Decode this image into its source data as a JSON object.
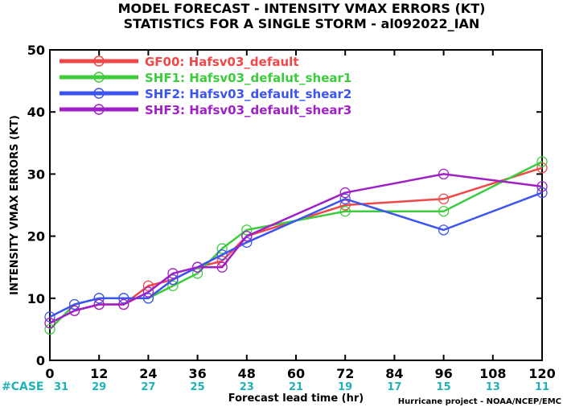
{
  "chart_data": {
    "type": "line",
    "title": "MODEL FORECAST - INTENSITY VMAX ERRORS (KT)",
    "subtitle": "STATISTICS FOR A SINGLE STORM - al092022_IAN",
    "xlabel": "Forecast lead time (hr)",
    "ylabel": "INTENSITY VMAX ERRORS (KT)",
    "xlim": [
      0,
      120
    ],
    "ylim": [
      0,
      50
    ],
    "x_ticks": [
      0,
      12,
      24,
      36,
      48,
      60,
      72,
      84,
      96,
      108,
      120
    ],
    "y_ticks": [
      0,
      10,
      20,
      30,
      40,
      50
    ],
    "grid": false,
    "legend_position": "top-left",
    "x": [
      0,
      6,
      12,
      18,
      24,
      30,
      36,
      42,
      48,
      72,
      96,
      120
    ],
    "series": [
      {
        "name": "GF00: Hafsv03_default",
        "color": "#f04848",
        "values": [
          6,
          8,
          9,
          9,
          12,
          13,
          15,
          16,
          20,
          25,
          26,
          31
        ]
      },
      {
        "name": "SHF1: Hafsv03_defalut_shear1",
        "color": "#3ccc3c",
        "values": [
          5,
          9,
          10,
          10,
          10,
          12,
          14,
          18,
          21,
          24,
          24,
          32
        ]
      },
      {
        "name": "SHF2: Hafsv03_default_shear2",
        "color": "#3c54f0",
        "values": [
          7,
          9,
          10,
          10,
          10,
          13,
          15,
          17,
          19,
          26,
          21,
          27
        ]
      },
      {
        "name": "SHF3: Hafsv03_default_shear3",
        "color": "#a020c8",
        "values": [
          6,
          8,
          9,
          9,
          11,
          14,
          15,
          15,
          20,
          27,
          30,
          28
        ]
      }
    ],
    "case_label": "#CASE",
    "case_counts": [
      31,
      29,
      27,
      25,
      23,
      21,
      19,
      17,
      15,
      13,
      11
    ],
    "credit": "Hurricane project - NOAA/NCEP/EMC"
  }
}
